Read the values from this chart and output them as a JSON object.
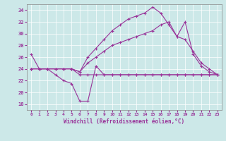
{
  "xlabel": "Windchill (Refroidissement éolien,°C)",
  "bg_color": "#cce8e8",
  "line_color": "#993399",
  "xlim": [
    -0.5,
    23.5
  ],
  "ylim": [
    17,
    35
  ],
  "yticks": [
    18,
    20,
    22,
    24,
    26,
    28,
    30,
    32,
    34
  ],
  "xticks": [
    0,
    1,
    2,
    3,
    4,
    5,
    6,
    7,
    8,
    9,
    10,
    11,
    12,
    13,
    14,
    15,
    16,
    17,
    18,
    19,
    20,
    21,
    22,
    23
  ],
  "series": [
    {
      "x": [
        0,
        1,
        2,
        3,
        4,
        5,
        6,
        7,
        8,
        9,
        10,
        11,
        12,
        13,
        14,
        15,
        16,
        17,
        18,
        19,
        20,
        21,
        22,
        23
      ],
      "y": [
        24.0,
        24.0,
        24.0,
        24.0,
        24.0,
        24.0,
        23.0,
        23.0,
        23.0,
        23.0,
        23.0,
        23.0,
        23.0,
        23.0,
        23.0,
        23.0,
        23.0,
        23.0,
        23.0,
        23.0,
        23.0,
        23.0,
        23.0,
        23.0
      ]
    },
    {
      "x": [
        0,
        1,
        2,
        3,
        4,
        5,
        6,
        7,
        8,
        9,
        10,
        11,
        12,
        13,
        14,
        15,
        16,
        17,
        18,
        19,
        20,
        21,
        22,
        23
      ],
      "y": [
        26.5,
        24.0,
        24.0,
        23.0,
        22.0,
        21.5,
        18.5,
        18.5,
        24.5,
        23.0,
        23.0,
        23.0,
        23.0,
        23.0,
        23.0,
        23.0,
        23.0,
        23.0,
        23.0,
        23.0,
        23.0,
        23.0,
        23.0,
        23.0
      ]
    },
    {
      "x": [
        0,
        1,
        2,
        3,
        4,
        5,
        6,
        7,
        8,
        9,
        10,
        11,
        12,
        13,
        14,
        15,
        16,
        17,
        18,
        19,
        20,
        21,
        22,
        23
      ],
      "y": [
        24.0,
        24.0,
        24.0,
        24.0,
        24.0,
        24.0,
        23.5,
        25.0,
        26.0,
        27.0,
        28.0,
        28.5,
        29.0,
        29.5,
        30.0,
        30.5,
        31.5,
        32.0,
        29.5,
        29.0,
        27.0,
        25.0,
        24.0,
        23.0
      ]
    },
    {
      "x": [
        0,
        1,
        2,
        3,
        4,
        5,
        6,
        7,
        8,
        9,
        10,
        11,
        12,
        13,
        14,
        15,
        16,
        17,
        18,
        19,
        20,
        21,
        22,
        23
      ],
      "y": [
        24.0,
        24.0,
        24.0,
        24.0,
        24.0,
        24.0,
        23.5,
        26.0,
        27.5,
        29.0,
        30.5,
        31.5,
        32.5,
        33.0,
        33.5,
        34.5,
        33.5,
        31.5,
        29.5,
        32.0,
        26.5,
        24.5,
        23.5,
        23.0
      ]
    }
  ]
}
